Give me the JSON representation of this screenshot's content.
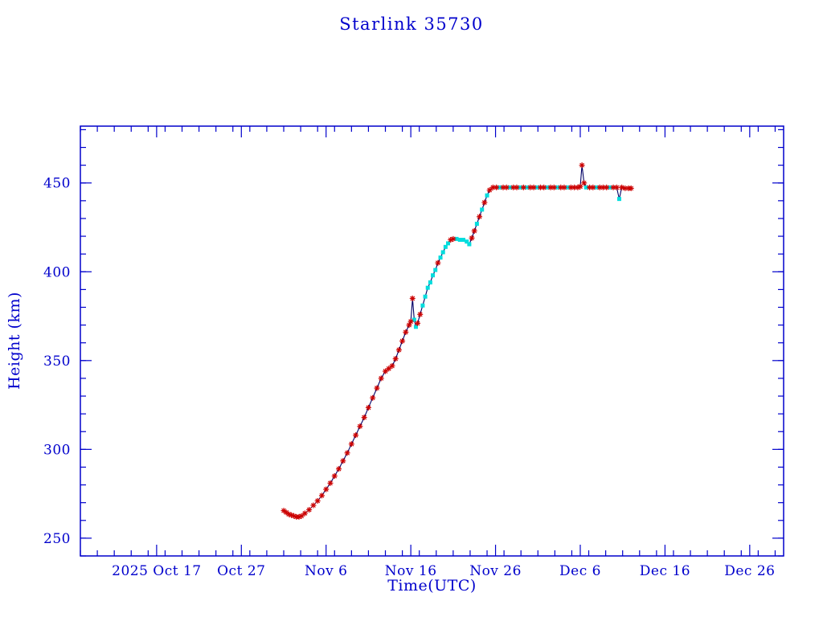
{
  "chart_data": {
    "type": "line",
    "title": "Starlink 35730",
    "xlabel": "Time(UTC)",
    "ylabel": "Height (km)",
    "x_unit": "days (day 0 = 2025 Oct 8)",
    "xlim": [
      0,
      83
    ],
    "ylim": [
      240,
      482
    ],
    "grid": false,
    "legend": "none",
    "x_minor_step": 2,
    "y_minor_step": 10,
    "y_ticks": [
      250,
      300,
      350,
      400,
      450
    ],
    "x_ticks": [
      {
        "day": 9,
        "label": "2025 Oct 17"
      },
      {
        "day": 19,
        "label": "Oct 27"
      },
      {
        "day": 29,
        "label": "Nov 6"
      },
      {
        "day": 39,
        "label": "Nov 16"
      },
      {
        "day": 49,
        "label": "Nov 26"
      },
      {
        "day": 59,
        "label": "Dec 6"
      },
      {
        "day": 69,
        "label": "Dec 16"
      },
      {
        "day": 79,
        "label": "Dec 26"
      }
    ],
    "colors": {
      "axis": "#0000cc",
      "line": "#000066",
      "marker_red": "#cc0000",
      "marker_cyan": "#00dddd"
    },
    "marker_legend": {
      "r": "red asterisk observation point",
      "c": "cyan square observation point"
    },
    "points": [
      [
        24.0,
        265.5,
        "r"
      ],
      [
        24.3,
        264.5,
        "r"
      ],
      [
        24.6,
        263.5,
        "r"
      ],
      [
        24.9,
        263,
        "r"
      ],
      [
        25.2,
        262.5,
        "r"
      ],
      [
        25.5,
        262,
        "r"
      ],
      [
        25.8,
        262,
        "r"
      ],
      [
        26.1,
        262.5,
        "r"
      ],
      [
        26.5,
        264,
        "r"
      ],
      [
        27.0,
        266,
        "r"
      ],
      [
        27.5,
        268.5,
        "r"
      ],
      [
        28.0,
        271,
        "r"
      ],
      [
        28.5,
        274,
        "r"
      ],
      [
        29.0,
        277.5,
        "r"
      ],
      [
        29.5,
        281,
        "r"
      ],
      [
        30.0,
        285,
        "r"
      ],
      [
        30.5,
        289,
        "r"
      ],
      [
        31.0,
        293.5,
        "r"
      ],
      [
        31.5,
        298,
        "r"
      ],
      [
        32.0,
        303,
        "r"
      ],
      [
        32.5,
        308,
        "r"
      ],
      [
        33.0,
        313,
        "r"
      ],
      [
        33.5,
        318,
        "r"
      ],
      [
        34.0,
        323.5,
        "r"
      ],
      [
        34.5,
        329,
        "r"
      ],
      [
        35.0,
        334.5,
        "r"
      ],
      [
        35.5,
        340,
        "r"
      ],
      [
        36.0,
        344,
        "r"
      ],
      [
        36.4,
        345.5,
        "r"
      ],
      [
        36.8,
        347,
        "r"
      ],
      [
        37.2,
        351,
        "r"
      ],
      [
        37.6,
        356,
        "r"
      ],
      [
        38.0,
        361,
        "r"
      ],
      [
        38.4,
        366,
        "r"
      ],
      [
        38.8,
        370,
        "r"
      ],
      [
        39.0,
        372,
        "r"
      ],
      [
        39.2,
        385,
        "r"
      ],
      [
        39.4,
        373,
        "c"
      ],
      [
        39.6,
        369,
        "c"
      ],
      [
        39.8,
        371,
        "r"
      ],
      [
        40.1,
        376,
        "r"
      ],
      [
        40.4,
        381,
        "c"
      ],
      [
        40.7,
        386,
        "c"
      ],
      [
        41.0,
        391,
        "c"
      ],
      [
        41.3,
        394,
        "c"
      ],
      [
        41.6,
        398,
        "c"
      ],
      [
        41.9,
        401,
        "c"
      ],
      [
        42.2,
        405,
        "r"
      ],
      [
        42.5,
        408,
        "c"
      ],
      [
        42.8,
        411,
        "c"
      ],
      [
        43.1,
        414,
        "c"
      ],
      [
        43.4,
        416,
        "c"
      ],
      [
        43.7,
        418,
        "r"
      ],
      [
        44.0,
        418.5,
        "r"
      ],
      [
        44.4,
        418.5,
        "c"
      ],
      [
        44.8,
        418,
        "c"
      ],
      [
        45.2,
        418,
        "c"
      ],
      [
        45.6,
        417,
        "c"
      ],
      [
        45.9,
        415.5,
        "c"
      ],
      [
        46.2,
        419,
        "r"
      ],
      [
        46.5,
        423,
        "r"
      ],
      [
        46.8,
        427,
        "c"
      ],
      [
        47.1,
        431,
        "r"
      ],
      [
        47.4,
        435,
        "c"
      ],
      [
        47.7,
        439,
        "r"
      ],
      [
        48.0,
        443,
        "c"
      ],
      [
        48.3,
        446,
        "r"
      ],
      [
        48.7,
        447.5,
        "r"
      ],
      [
        49.1,
        447.5,
        "r"
      ],
      [
        49.5,
        447.5,
        "c"
      ],
      [
        49.9,
        447.5,
        "r"
      ],
      [
        50.3,
        447.5,
        "r"
      ],
      [
        50.7,
        447.5,
        "c"
      ],
      [
        51.1,
        447.5,
        "r"
      ],
      [
        51.5,
        447.5,
        "r"
      ],
      [
        51.9,
        447.5,
        "c"
      ],
      [
        52.3,
        447.5,
        "r"
      ],
      [
        52.7,
        447.5,
        "c"
      ],
      [
        53.1,
        447.5,
        "r"
      ],
      [
        53.5,
        447.5,
        "r"
      ],
      [
        53.9,
        447.5,
        "c"
      ],
      [
        54.3,
        447.5,
        "r"
      ],
      [
        54.7,
        447.5,
        "r"
      ],
      [
        55.1,
        447.5,
        "c"
      ],
      [
        55.5,
        447.5,
        "r"
      ],
      [
        55.9,
        447.5,
        "r"
      ],
      [
        56.3,
        447.5,
        "c"
      ],
      [
        56.7,
        447.5,
        "r"
      ],
      [
        57.1,
        447.5,
        "r"
      ],
      [
        57.5,
        447.5,
        "c"
      ],
      [
        57.9,
        447.5,
        "r"
      ],
      [
        58.3,
        447.5,
        "r"
      ],
      [
        58.7,
        447.5,
        "r"
      ],
      [
        59.0,
        448,
        "r"
      ],
      [
        59.2,
        460,
        "r"
      ],
      [
        59.45,
        450,
        "r"
      ],
      [
        59.7,
        447.5,
        "c"
      ],
      [
        60.1,
        447.5,
        "r"
      ],
      [
        60.5,
        447.5,
        "r"
      ],
      [
        60.9,
        447.5,
        "c"
      ],
      [
        61.3,
        447.5,
        "r"
      ],
      [
        61.7,
        447.5,
        "r"
      ],
      [
        62.1,
        447.5,
        "r"
      ],
      [
        62.5,
        447.5,
        "c"
      ],
      [
        62.9,
        447.5,
        "r"
      ],
      [
        63.3,
        447.5,
        "r"
      ],
      [
        63.6,
        441,
        "c"
      ],
      [
        63.9,
        447.5,
        "r"
      ],
      [
        64.3,
        447,
        "r"
      ],
      [
        64.7,
        447,
        "r"
      ],
      [
        65.0,
        447,
        "r"
      ]
    ]
  }
}
